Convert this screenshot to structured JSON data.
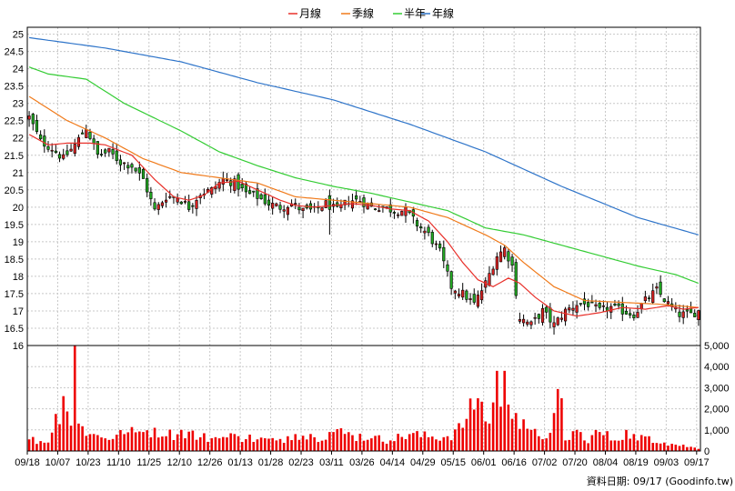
{
  "legend": [
    {
      "label": "月線",
      "color": "#e8302a"
    },
    {
      "label": "季線",
      "color": "#f07a1a"
    },
    {
      "label": "半年",
      "color": "#33cc33"
    },
    {
      "label": "年線",
      "color": "#2e74c9"
    }
  ],
  "footer": {
    "text": "資料日期: 09/17  (Goodinfo.tw)"
  },
  "chart_data": [
    {
      "type": "candlestick",
      "title": "",
      "ylim": [
        16,
        25.2
      ],
      "y_ticks": [
        "16",
        "16.5",
        "17",
        "17.5",
        "18",
        "18.5",
        "19",
        "19.5",
        "20",
        "20.5",
        "21",
        "21.5",
        "22",
        "22.5",
        "23",
        "23.5",
        "24",
        "24.5",
        "25"
      ],
      "x_ticks": [
        "09/18",
        "10/07",
        "10/23",
        "11/10",
        "11/25",
        "12/10",
        "12/26",
        "01/13",
        "01/28",
        "02/23",
        "03/11",
        "03/26",
        "04/14",
        "04/29",
        "05/15",
        "06/01",
        "06/16",
        "07/02",
        "07/20",
        "08/04",
        "08/19",
        "09/03",
        "09/17"
      ],
      "grid": true,
      "candle_colors": {
        "up": "#dd2222",
        "down": "#22aa22"
      },
      "close_anchors": [
        [
          0,
          22.6
        ],
        [
          3,
          21.9
        ],
        [
          6,
          21.7
        ],
        [
          9,
          21.4
        ],
        [
          12,
          21.8
        ],
        [
          15,
          22.3
        ],
        [
          18,
          21.5
        ],
        [
          21,
          21.6
        ],
        [
          24,
          21.3
        ],
        [
          27,
          21.2
        ],
        [
          30,
          20.8
        ],
        [
          33,
          19.9
        ],
        [
          36,
          20.3
        ],
        [
          39,
          20.3
        ],
        [
          42,
          20.0
        ],
        [
          45,
          20.4
        ],
        [
          48,
          20.5
        ],
        [
          51,
          20.8
        ],
        [
          54,
          20.7
        ],
        [
          57,
          20.4
        ],
        [
          60,
          20.3
        ],
        [
          63,
          20.1
        ],
        [
          66,
          20.0
        ],
        [
          69,
          20.1
        ],
        [
          72,
          19.9
        ],
        [
          75,
          19.9
        ],
        [
          78,
          20.1
        ],
        [
          81,
          19.9
        ],
        [
          84,
          20.2
        ],
        [
          87,
          20.2
        ],
        [
          90,
          20.0
        ],
        [
          93,
          20.0
        ],
        [
          96,
          19.9
        ],
        [
          99,
          19.9
        ],
        [
          102,
          19.5
        ],
        [
          105,
          19.2
        ],
        [
          108,
          18.7
        ],
        [
          111,
          17.7
        ],
        [
          114,
          17.5
        ],
        [
          117,
          17.2
        ],
        [
          120,
          17.8
        ],
        [
          123,
          18.6
        ],
        [
          125,
          18.8
        ],
        [
          127,
          18.3
        ],
        [
          129,
          16.8
        ],
        [
          132,
          16.6
        ],
        [
          135,
          17.0
        ],
        [
          138,
          16.6
        ],
        [
          141,
          17.0
        ],
        [
          144,
          17.2
        ],
        [
          147,
          17.2
        ],
        [
          150,
          17.0
        ],
        [
          153,
          17.1
        ],
        [
          156,
          17.0
        ],
        [
          159,
          16.9
        ],
        [
          162,
          17.3
        ],
        [
          165,
          17.6
        ],
        [
          168,
          17.2
        ],
        [
          171,
          16.9
        ],
        [
          174,
          16.9
        ],
        [
          176,
          17.0
        ]
      ],
      "series": [
        {
          "name": "年線",
          "anchors": [
            [
              0,
              24.9
            ],
            [
              20,
              24.6
            ],
            [
              40,
              24.2
            ],
            [
              60,
              23.6
            ],
            [
              80,
              23.1
            ],
            [
              100,
              22.4
            ],
            [
              120,
              21.6
            ],
            [
              140,
              20.6
            ],
            [
              160,
              19.7
            ],
            [
              176,
              19.2
            ]
          ]
        },
        {
          "name": "半年",
          "anchors": [
            [
              0,
              24.05
            ],
            [
              5,
              23.85
            ],
            [
              15,
              23.7
            ],
            [
              25,
              23.0
            ],
            [
              40,
              22.2
            ],
            [
              50,
              21.6
            ],
            [
              60,
              21.2
            ],
            [
              70,
              20.85
            ],
            [
              80,
              20.6
            ],
            [
              90,
              20.4
            ],
            [
              100,
              20.15
            ],
            [
              110,
              19.9
            ],
            [
              120,
              19.4
            ],
            [
              125,
              19.3
            ],
            [
              130,
              19.2
            ],
            [
              140,
              18.9
            ],
            [
              150,
              18.6
            ],
            [
              160,
              18.3
            ],
            [
              170,
              18.05
            ],
            [
              176,
              17.8
            ]
          ]
        },
        {
          "name": "季線",
          "anchors": [
            [
              0,
              23.2
            ],
            [
              10,
              22.5
            ],
            [
              20,
              22.0
            ],
            [
              30,
              21.4
            ],
            [
              40,
              21.0
            ],
            [
              50,
              20.85
            ],
            [
              60,
              20.7
            ],
            [
              70,
              20.3
            ],
            [
              80,
              20.2
            ],
            [
              90,
              20.1
            ],
            [
              100,
              20.0
            ],
            [
              110,
              19.7
            ],
            [
              120,
              19.2
            ],
            [
              125,
              18.9
            ],
            [
              130,
              18.4
            ],
            [
              138,
              17.7
            ],
            [
              146,
              17.3
            ],
            [
              155,
              17.25
            ],
            [
              165,
              17.2
            ],
            [
              176,
              17.1
            ]
          ]
        },
        {
          "name": "月線",
          "anchors": [
            [
              0,
              22.1
            ],
            [
              5,
              21.8
            ],
            [
              10,
              21.85
            ],
            [
              16,
              21.85
            ],
            [
              20,
              21.8
            ],
            [
              27,
              21.5
            ],
            [
              33,
              20.8
            ],
            [
              38,
              20.3
            ],
            [
              42,
              20.2
            ],
            [
              46,
              20.35
            ],
            [
              50,
              20.7
            ],
            [
              55,
              20.75
            ],
            [
              60,
              20.5
            ],
            [
              66,
              20.2
            ],
            [
              70,
              20.05
            ],
            [
              75,
              20.0
            ],
            [
              80,
              20.05
            ],
            [
              85,
              20.1
            ],
            [
              90,
              20.05
            ],
            [
              95,
              19.95
            ],
            [
              100,
              19.9
            ],
            [
              105,
              19.6
            ],
            [
              110,
              19.0
            ],
            [
              114,
              18.4
            ],
            [
              118,
              17.9
            ],
            [
              122,
              17.7
            ],
            [
              126,
              17.95
            ],
            [
              129,
              17.8
            ],
            [
              133,
              17.4
            ],
            [
              138,
              17.0
            ],
            [
              144,
              16.85
            ],
            [
              150,
              16.95
            ],
            [
              156,
              17.1
            ],
            [
              162,
              17.05
            ],
            [
              168,
              17.15
            ],
            [
              172,
              17.05
            ],
            [
              176,
              17.1
            ]
          ]
        }
      ]
    },
    {
      "type": "bar",
      "title": "",
      "ylim": [
        0,
        5000
      ],
      "y_ticks": [
        "0",
        "1,000",
        "2,000",
        "3,000",
        "4,000",
        "5,000"
      ],
      "bar_color": "#ee0000",
      "volume_anchors": [
        [
          0,
          550
        ],
        [
          5,
          400
        ],
        [
          9,
          2600
        ],
        [
          11,
          1200
        ],
        [
          12,
          5000
        ],
        [
          13,
          1300
        ],
        [
          16,
          800
        ],
        [
          20,
          600
        ],
        [
          25,
          800
        ],
        [
          30,
          900
        ],
        [
          33,
          1100
        ],
        [
          36,
          700
        ],
        [
          40,
          1000
        ],
        [
          45,
          650
        ],
        [
          50,
          600
        ],
        [
          55,
          700
        ],
        [
          60,
          550
        ],
        [
          65,
          500
        ],
        [
          70,
          800
        ],
        [
          75,
          650
        ],
        [
          80,
          900
        ],
        [
          85,
          750
        ],
        [
          90,
          600
        ],
        [
          95,
          500
        ],
        [
          100,
          800
        ],
        [
          105,
          650
        ],
        [
          110,
          700
        ],
        [
          114,
          1100
        ],
        [
          118,
          2500
        ],
        [
          120,
          1400
        ],
        [
          121,
          1300
        ],
        [
          123,
          3800
        ],
        [
          124,
          2100
        ],
        [
          125,
          3800
        ],
        [
          126,
          2200
        ],
        [
          128,
          1800
        ],
        [
          130,
          1500
        ],
        [
          132,
          1000
        ],
        [
          134,
          700
        ],
        [
          136,
          600
        ],
        [
          138,
          1800
        ],
        [
          140,
          2500
        ],
        [
          141,
          500
        ],
        [
          144,
          1000
        ],
        [
          146,
          500
        ],
        [
          150,
          900
        ],
        [
          154,
          500
        ],
        [
          157,
          1000
        ],
        [
          160,
          500
        ],
        [
          163,
          700
        ],
        [
          167,
          400
        ],
        [
          170,
          300
        ],
        [
          174,
          200
        ],
        [
          176,
          100
        ]
      ]
    }
  ]
}
